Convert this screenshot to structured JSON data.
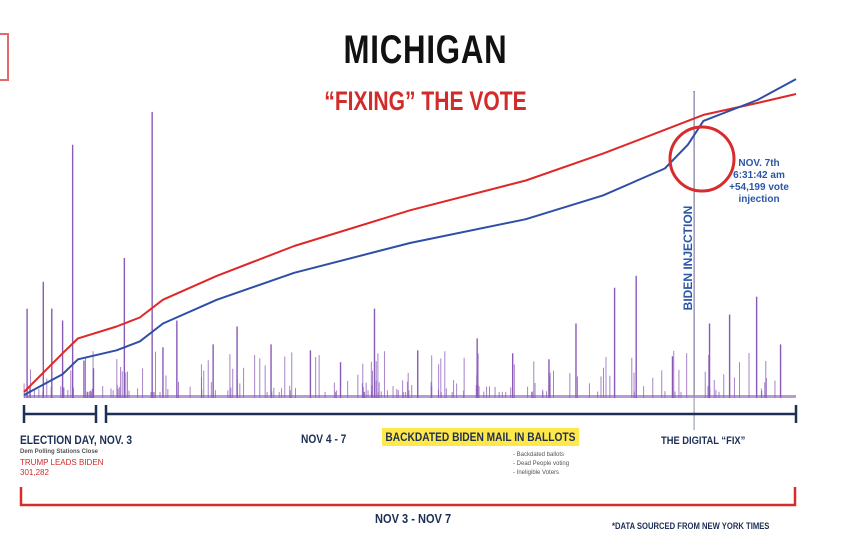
{
  "header": {
    "title": "MICHIGAN",
    "subtitle": "“FIXING” THE VOTE"
  },
  "annotations": {
    "election_day": "ELECTION DAY, NOV. 3",
    "polls_closed": "Dem Polling Stations Close",
    "trump_leads": "TRUMP LEADS BIDEN",
    "trump_lead_value": "301,282",
    "nov_4_7": "NOV 4 - 7",
    "backdated": "BACKDATED BIDEN MAIL IN BALLOTS",
    "bullets": [
      "- Backdated ballots",
      "- Dead People voting",
      "- Ineligible Voters"
    ],
    "digital_fix": "THE DIGITAL “FIX”",
    "nov_3_7": "NOV 3 - NOV 7",
    "source": "*DATA SOURCED FROM NEW YORK TIMES",
    "biden_injection": "BIDEN INJECTION",
    "injection_lines": [
      "NOV. 7th",
      "6:31:42 am",
      "+54,199 vote",
      "injection"
    ]
  },
  "colors": {
    "trump": "#e02727",
    "biden": "#2f4fa6",
    "spikes": "#8a59b8",
    "dark": "#1d2f55"
  },
  "chart_data": {
    "type": "line",
    "title": "",
    "x_range": [
      0,
      100
    ],
    "y_range": [
      0,
      100
    ],
    "series": [
      {
        "color": "red",
        "x": [
          0,
          5,
          7,
          12,
          15,
          18,
          25,
          35,
          50,
          65,
          75,
          83,
          88,
          95,
          100
        ],
        "y": [
          2,
          15,
          20,
          24,
          27,
          33,
          41,
          51,
          63,
          73,
          82,
          90,
          95,
          99,
          102
        ]
      },
      {
        "color": "blue",
        "x": [
          0,
          5,
          7,
          12,
          15,
          18,
          25,
          35,
          50,
          65,
          75,
          83,
          86,
          88,
          95,
          100
        ],
        "y": [
          1,
          8,
          13,
          16,
          19,
          25,
          33,
          42,
          52,
          60,
          68,
          77,
          85,
          93,
          100,
          107
        ]
      }
    ],
    "spikes": [
      {
        "x": 0.4,
        "h": 30
      },
      {
        "x": 2.5,
        "h": 39
      },
      {
        "x": 3.6,
        "h": 30
      },
      {
        "x": 5.0,
        "h": 26
      },
      {
        "x": 6.3,
        "h": 85
      },
      {
        "x": 9.0,
        "h": 10
      },
      {
        "x": 13.0,
        "h": 47
      },
      {
        "x": 16.6,
        "h": 96
      },
      {
        "x": 18.0,
        "h": 17
      },
      {
        "x": 19.8,
        "h": 26
      },
      {
        "x": 24.5,
        "h": 18
      },
      {
        "x": 27.6,
        "h": 24
      },
      {
        "x": 32.0,
        "h": 18
      },
      {
        "x": 37.1,
        "h": 16
      },
      {
        "x": 41.0,
        "h": 12
      },
      {
        "x": 45.4,
        "h": 30
      },
      {
        "x": 51.0,
        "h": 16
      },
      {
        "x": 58.7,
        "h": 20
      },
      {
        "x": 63.3,
        "h": 15
      },
      {
        "x": 68.0,
        "h": 13
      },
      {
        "x": 71.5,
        "h": 25
      },
      {
        "x": 76.5,
        "h": 37
      },
      {
        "x": 79.3,
        "h": 41
      },
      {
        "x": 84.0,
        "h": 14
      },
      {
        "x": 86.8,
        "h": 103
      },
      {
        "x": 88.8,
        "h": 25
      },
      {
        "x": 91.4,
        "h": 28
      },
      {
        "x": 94.9,
        "h": 34
      },
      {
        "x": 98.0,
        "h": 18
      }
    ],
    "event_x": 86.8
  }
}
